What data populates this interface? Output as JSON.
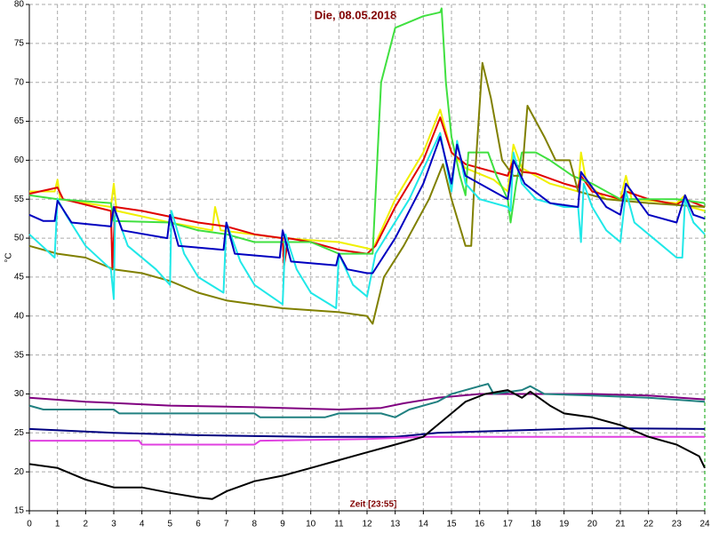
{
  "chart_data": {
    "type": "line",
    "title": "Die, 08.05.2018",
    "x_label": "Zeit [23:55]",
    "y_label": "°C",
    "xlim": [
      0,
      24
    ],
    "ylim": [
      15,
      80
    ],
    "xticks": [
      0,
      1,
      2,
      3,
      4,
      5,
      6,
      7,
      8,
      9,
      10,
      11,
      12,
      13,
      14,
      15,
      16,
      17,
      18,
      19,
      20,
      21,
      22,
      23,
      24
    ],
    "yticks": [
      15,
      20,
      25,
      30,
      35,
      40,
      45,
      50,
      55,
      60,
      65,
      70,
      75,
      80
    ],
    "grid": true,
    "series": [
      {
        "color": "#f0f000",
        "x": [
          0,
          0.9,
          1,
          1.1,
          2.9,
          3,
          3.1,
          5,
          6.5,
          6.6,
          6.8,
          9,
          11,
          12,
          12.2,
          13,
          14,
          14.6,
          15,
          15.5,
          16.5,
          17,
          17.2,
          17.5,
          18.5,
          19.5,
          19.6,
          19.8,
          20.5,
          21,
          21.2,
          21.4,
          23,
          23.3,
          23.5,
          24
        ],
        "values": [
          56,
          56,
          57.5,
          55,
          54,
          57,
          53.5,
          52,
          51,
          54,
          51,
          50,
          49.5,
          48.7,
          48.5,
          55,
          61,
          66.5,
          61,
          59,
          57.5,
          56,
          62,
          59,
          57,
          56,
          61,
          57,
          55,
          55,
          58,
          55,
          54.5,
          55.5,
          54,
          53.5
        ]
      },
      {
        "color": "#e00000",
        "x": [
          0,
          1,
          1.2,
          2.9,
          2.95,
          3.05,
          4,
          6,
          7,
          8,
          9,
          9.05,
          9.2,
          10,
          11,
          12,
          12.3,
          13,
          14,
          14.6,
          15,
          15.5,
          16,
          17,
          17.2,
          17.5,
          18,
          19,
          19.5,
          19.6,
          20,
          21,
          21.2,
          22,
          23,
          23.3,
          24
        ],
        "values": [
          55.7,
          56.5,
          55,
          53.5,
          46,
          54,
          53.5,
          52,
          51.5,
          50.5,
          50,
          46.5,
          50,
          49.5,
          48.5,
          48,
          49,
          54,
          60,
          65.5,
          61,
          59.5,
          59,
          58,
          60,
          58.5,
          58.3,
          57,
          56.5,
          58,
          56,
          55,
          56,
          55,
          54.3,
          55,
          54
        ]
      },
      {
        "color": "#40e040",
        "x": [
          0,
          1,
          2.9,
          3,
          5,
          6,
          7,
          8,
          10,
          11,
          12.2,
          12.5,
          13,
          14,
          14.6,
          14.65,
          14.8,
          15,
          15.3,
          15.5,
          15.6,
          16.3,
          16.6,
          17,
          17.1,
          17.3,
          17.5,
          18,
          18.5,
          19.3,
          20,
          21,
          22,
          23,
          24
        ],
        "values": [
          55.5,
          55,
          54.5,
          52.2,
          52,
          51,
          50.5,
          49.5,
          49.5,
          48,
          48,
          70,
          77,
          78.5,
          79,
          79.5,
          70,
          63,
          58,
          55.5,
          61,
          61,
          58,
          55,
          52,
          57,
          61,
          61,
          60,
          58,
          57,
          55,
          55,
          55,
          54.5
        ]
      },
      {
        "color": "#808000",
        "x": [
          0,
          1,
          2,
          3,
          4,
          5,
          6,
          7,
          8,
          9,
          11,
          12,
          12.2,
          12.6,
          13.3,
          14.2,
          14.7,
          15,
          15.5,
          15.7,
          15.8,
          16.1,
          16.4,
          16.8,
          17.2,
          17.5,
          17.7,
          18.3,
          18.7,
          19.2,
          19.5,
          20.5,
          22,
          24
        ],
        "values": [
          49,
          48,
          47.5,
          46,
          45.5,
          44.5,
          43,
          42,
          41.5,
          41,
          40.5,
          40,
          39,
          45,
          49,
          55,
          59.5,
          55,
          49,
          49,
          56,
          72.5,
          68,
          60,
          58,
          58,
          67,
          63,
          60,
          60,
          56,
          55,
          54.5,
          54
        ]
      },
      {
        "color": "#20e8e8",
        "x": [
          0,
          0.9,
          1,
          1.3,
          2,
          2.9,
          3,
          3.05,
          3.5,
          4.5,
          5,
          5.05,
          5.5,
          6,
          6.9,
          7,
          7.5,
          8,
          9,
          9.1,
          9.5,
          10,
          10.9,
          11,
          11.5,
          12,
          12.3,
          13.5,
          14.6,
          15,
          15.2,
          15.5,
          16,
          17,
          17.1,
          17.2,
          17.5,
          18,
          19,
          19.5,
          19.6,
          19.7,
          20,
          20.5,
          21,
          21.2,
          21.5,
          22.5,
          23,
          23.2,
          23.3,
          23.6,
          24
        ],
        "values": [
          50.5,
          47.5,
          55,
          53,
          49,
          46,
          42.2,
          53.5,
          49,
          46,
          44,
          53.5,
          48,
          45,
          43,
          52,
          47,
          44,
          41.5,
          50.5,
          46,
          43,
          41,
          48,
          44,
          42.5,
          48,
          55,
          63.5,
          56,
          62.5,
          57,
          55,
          54,
          53.5,
          61,
          57,
          55,
          54,
          54,
          49.5,
          57,
          54,
          51,
          49.5,
          56,
          52,
          49,
          47.5,
          47.5,
          55,
          52,
          50.5
        ]
      },
      {
        "color": "#0000c0",
        "x": [
          0,
          0.5,
          0.9,
          1,
          1.5,
          2.9,
          3,
          3.3,
          4.9,
          5,
          5.3,
          6.9,
          7,
          7.3,
          8.9,
          9,
          9.3,
          10.9,
          11,
          11.3,
          12,
          12.2,
          13,
          14,
          14.6,
          15,
          15.2,
          15.5,
          16.5,
          17,
          17.2,
          17.6,
          18.5,
          19.5,
          19.6,
          20.5,
          21,
          21.2,
          22,
          23,
          23.3,
          23.6,
          24
        ],
        "values": [
          53,
          52.2,
          52.2,
          54.8,
          52,
          51.5,
          54,
          51,
          50,
          53,
          49,
          48.5,
          52,
          48,
          47.5,
          51,
          47,
          46.5,
          48,
          46,
          45.5,
          45.5,
          50,
          57,
          63,
          57,
          62,
          58,
          56,
          55,
          60,
          57,
          54.5,
          54,
          58.5,
          54,
          53,
          57,
          53,
          52,
          55.5,
          53,
          52.5
        ]
      },
      {
        "color": "#800080",
        "x": [
          0,
          2,
          5,
          8,
          11,
          12.5,
          13.3,
          14.5,
          16,
          18,
          20,
          22,
          24
        ],
        "values": [
          29.5,
          29,
          28.5,
          28.3,
          28,
          28.2,
          28.8,
          29.5,
          30,
          30,
          30,
          29.8,
          29.3
        ]
      },
      {
        "color": "#208080",
        "x": [
          0,
          0.5,
          3,
          3.2,
          8,
          8.2,
          10.5,
          11,
          12.5,
          13,
          13.5,
          14.5,
          15,
          16,
          16.3,
          16.5,
          17.5,
          17.8,
          18.3,
          20,
          22,
          24
        ],
        "values": [
          28.5,
          28,
          28,
          27.5,
          27.5,
          27,
          27,
          27.5,
          27.5,
          27,
          28,
          29,
          30,
          31,
          31.3,
          30,
          30.5,
          31,
          30,
          29.8,
          29.5,
          29
        ]
      },
      {
        "color": "#000080",
        "x": [
          0,
          3,
          6,
          10,
          13,
          14.5,
          17,
          20,
          24
        ],
        "values": [
          25.5,
          25,
          24.7,
          24.5,
          24.5,
          25,
          25.3,
          25.6,
          25.5
        ]
      },
      {
        "color": "#e040e0",
        "x": [
          0,
          3.9,
          4,
          8,
          8.2,
          12,
          14,
          24
        ],
        "values": [
          24,
          24,
          23.5,
          23.5,
          24,
          24.2,
          24.5,
          24.5
        ]
      },
      {
        "color": "#000000",
        "x": [
          0,
          1,
          2,
          3,
          4,
          5,
          6,
          6.5,
          7,
          8,
          9,
          10,
          11,
          12,
          13,
          14,
          14.5,
          15,
          15.5,
          16.2,
          17,
          17.5,
          17.8,
          18.5,
          19,
          20,
          21,
          22,
          23,
          23.8,
          24
        ],
        "values": [
          21,
          20.5,
          19,
          18,
          18,
          17.3,
          16.7,
          16.5,
          17.5,
          18.8,
          19.5,
          20.5,
          21.5,
          22.5,
          23.5,
          24.5,
          26,
          27.5,
          29,
          30,
          30.5,
          29.5,
          30.3,
          28.5,
          27.5,
          27,
          26,
          24.5,
          23.5,
          22,
          20.5
        ]
      }
    ]
  }
}
